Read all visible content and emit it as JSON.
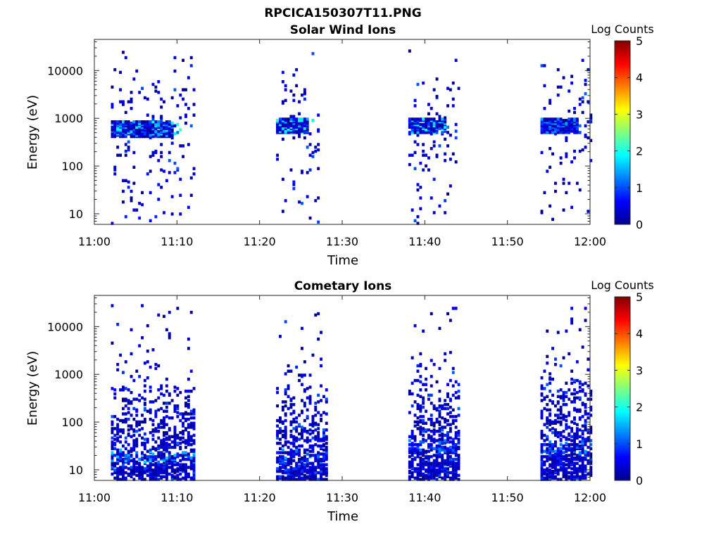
{
  "figure": {
    "filename": "RPCICA150307T11.PNG"
  },
  "colormap": "jet",
  "chart_data": [
    {
      "type": "heatmap",
      "title": "Solar Wind Ions",
      "xlabel": "Time",
      "ylabel": "Energy (eV)",
      "x_ticks": [
        "11:00",
        "11:10",
        "11:20",
        "11:30",
        "11:40",
        "11:50",
        "12:00"
      ],
      "x_range": [
        "11:00",
        "12:00"
      ],
      "y_scale": "log",
      "y_ticks": [
        10,
        100,
        1000,
        10000
      ],
      "y_tick_labels": [
        "10",
        "100",
        "1000",
        "10000"
      ],
      "ylim": [
        6,
        45000
      ],
      "colorbar": {
        "label": "Log Counts",
        "range": [
          0,
          5
        ],
        "ticks": [
          "0",
          "1",
          "2",
          "3",
          "4",
          "5"
        ]
      },
      "bursts": [
        {
          "start": "11:02",
          "end": "11:12",
          "peak_energy_ev": 600,
          "peak_log_counts": 2.2
        },
        {
          "start": "11:22",
          "end": "11:27",
          "peak_energy_ev": 700,
          "peak_log_counts": 2.3
        },
        {
          "start": "11:38",
          "end": "11:44",
          "peak_energy_ev": 700,
          "peak_log_counts": 2.0
        },
        {
          "start": "11:54",
          "end": "12:00",
          "peak_energy_ev": 700,
          "peak_log_counts": 1.5
        }
      ]
    },
    {
      "type": "heatmap",
      "title": "Cometary Ions",
      "xlabel": "Time",
      "ylabel": "Energy (eV)",
      "x_ticks": [
        "11:00",
        "11:10",
        "11:20",
        "11:30",
        "11:40",
        "11:50",
        "12:00"
      ],
      "x_range": [
        "11:00",
        "12:00"
      ],
      "y_scale": "log",
      "y_ticks": [
        10,
        100,
        1000,
        10000
      ],
      "y_tick_labels": [
        "10",
        "100",
        "1000",
        "10000"
      ],
      "ylim": [
        6,
        45000
      ],
      "colorbar": {
        "label": "Log Counts",
        "range": [
          0,
          5
        ],
        "ticks": [
          "0",
          "1",
          "2",
          "3",
          "4",
          "5"
        ]
      },
      "bursts": [
        {
          "start": "11:02",
          "end": "11:12",
          "peak_energy_ev": 20,
          "peak_log_counts": 1.8
        },
        {
          "start": "11:22",
          "end": "11:28",
          "peak_energy_ev": 20,
          "peak_log_counts": 1.5
        },
        {
          "start": "11:38",
          "end": "11:44",
          "peak_energy_ev": 30,
          "peak_log_counts": 1.4
        },
        {
          "start": "11:54",
          "end": "12:00",
          "peak_energy_ev": 30,
          "peak_log_counts": 1.4
        }
      ]
    }
  ]
}
